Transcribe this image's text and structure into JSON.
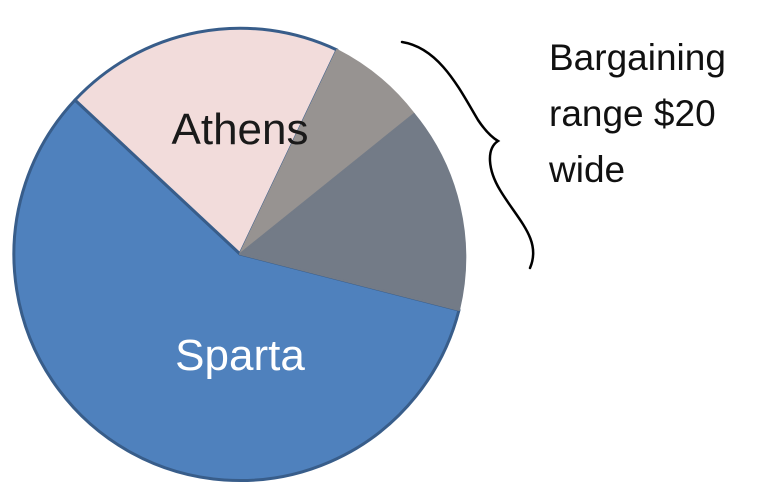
{
  "diagram": {
    "slices": [
      {
        "label": "Athens",
        "color": "#f2dcdb",
        "value": 20
      },
      {
        "label": "",
        "color": "#979391",
        "value": 7
      },
      {
        "label": "",
        "color": "#737b87",
        "value": 15
      },
      {
        "label": "Sparta",
        "color": "#4f81bd",
        "value": 58
      }
    ],
    "outline_color": "#385d8a",
    "bracket_color": "#000000",
    "annotation": {
      "lines": [
        "Bargaining",
        "range $20",
        "wide"
      ]
    }
  }
}
